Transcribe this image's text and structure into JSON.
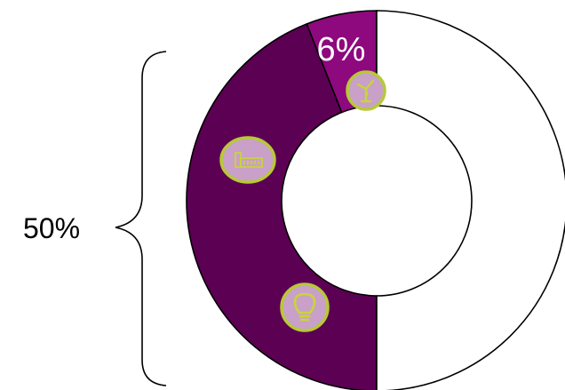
{
  "chart_data": {
    "type": "donut",
    "segments": [
      {
        "value": 6,
        "label": "6%",
        "color": "#8e087e",
        "icon": "wind-turbine-icon"
      },
      {
        "value": 44,
        "label": "",
        "color": "#5c0054",
        "icon": "factory-icon"
      },
      {
        "value": 50,
        "label": "",
        "color": "#ffffff",
        "icon": ""
      }
    ],
    "bracket_label": "50%",
    "extra_icon": "lightbulb-icon",
    "icon_badge_fill": "#c9a0c8",
    "icon_badge_ring": "#b7c937",
    "icon_glyph_color": "#c9d43a",
    "outline_color": "#000000",
    "label_color": "#ffffff"
  }
}
